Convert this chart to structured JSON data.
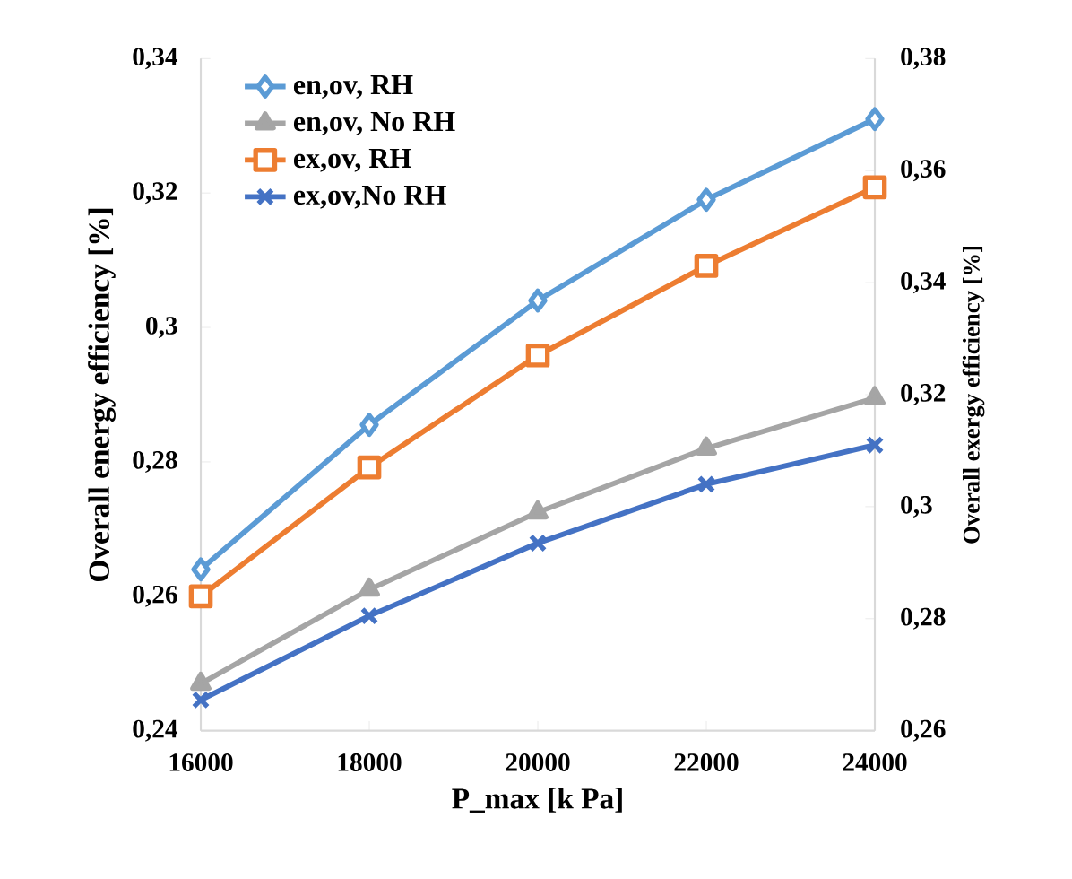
{
  "chart_data": {
    "type": "line",
    "xlabel": "P_max [k Pa]",
    "ylabel": "Overall energy efficiency [%]",
    "y2label": "Overall exergy efficiency [%]",
    "x": [
      16000,
      18000,
      20000,
      22000,
      24000
    ],
    "xlim": [
      16000,
      24000
    ],
    "xticks": [
      16000,
      18000,
      20000,
      22000,
      24000
    ],
    "ylim": [
      0.24,
      0.34
    ],
    "yticks": [
      {
        "value": 0.24,
        "label": "0,24"
      },
      {
        "value": 0.26,
        "label": "0,26"
      },
      {
        "value": 0.28,
        "label": "0,28"
      },
      {
        "value": 0.3,
        "label": "0,3"
      },
      {
        "value": 0.32,
        "label": "0,32"
      },
      {
        "value": 0.34,
        "label": "0,34"
      }
    ],
    "y2lim": [
      0.26,
      0.38
    ],
    "y2ticks": [
      {
        "value": 0.26,
        "label": "0,26"
      },
      {
        "value": 0.28,
        "label": "0,28"
      },
      {
        "value": 0.3,
        "label": "0,3"
      },
      {
        "value": 0.32,
        "label": "0,32"
      },
      {
        "value": 0.34,
        "label": "0,34"
      },
      {
        "value": 0.36,
        "label": "0,36"
      },
      {
        "value": 0.38,
        "label": "0,38"
      }
    ],
    "legend": "top left",
    "grid": false,
    "line_style": "solid",
    "series": [
      {
        "name": "en,ov, RH",
        "color": "#5b9bd5",
        "marker": "diamond",
        "values": [
          0.264,
          0.2855,
          0.304,
          0.319,
          0.331
        ]
      },
      {
        "name": "en,ov, No RH",
        "color": "#a5a5a5",
        "marker": "triangle",
        "values": [
          0.247,
          0.261,
          0.2725,
          0.282,
          0.2895
        ]
      },
      {
        "name": "ex,ov, RH",
        "color": "#ed7d31",
        "marker": "square",
        "axis": "y2",
        "values": [
          0.284,
          0.307,
          0.327,
          0.343,
          0.357
        ]
      },
      {
        "name": "ex,ov,No RH",
        "color": "#4472c4",
        "marker": "cross",
        "axis": "y2",
        "values": [
          0.2655,
          0.2805,
          0.2935,
          0.304,
          0.311
        ]
      }
    ]
  }
}
